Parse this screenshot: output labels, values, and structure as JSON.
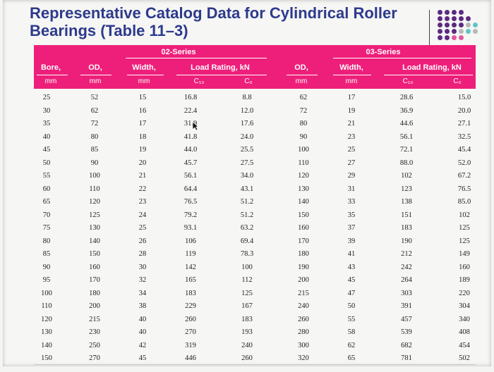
{
  "title_line1": "Representative Catalog Data for Cylindrical Roller",
  "title_line2": "Bearings (Table 11–3)",
  "header": {
    "series_02": "02-Series",
    "series_03": "03-Series",
    "bore": "Bore,",
    "od": "OD,",
    "width": "Width,",
    "load_rating": "Load Rating, kN",
    "od2": "OD,",
    "width2": "Width,",
    "load_rating2": "Load Rating, kN",
    "mm": "mm",
    "c10": "C₁₀",
    "c0": "C₀"
  },
  "columns": [
    "bore",
    "od02",
    "w02",
    "c10_02",
    "c0_02",
    "od03",
    "w03",
    "c10_03",
    "c0_03"
  ],
  "rows": [
    [
      "25",
      "52",
      "15",
      "16.8",
      "8.8",
      "62",
      "17",
      "28.6",
      "15.0"
    ],
    [
      "30",
      "62",
      "16",
      "22.4",
      "12.0",
      "72",
      "19",
      "36.9",
      "20.0"
    ],
    [
      "35",
      "72",
      "17",
      "31.9",
      "17.6",
      "80",
      "21",
      "44.6",
      "27.1"
    ],
    [
      "40",
      "80",
      "18",
      "41.8",
      "24.0",
      "90",
      "23",
      "56.1",
      "32.5"
    ],
    [
      "45",
      "85",
      "19",
      "44.0",
      "25.5",
      "100",
      "25",
      "72.1",
      "45.4"
    ],
    [
      "50",
      "90",
      "20",
      "45.7",
      "27.5",
      "110",
      "27",
      "88.0",
      "52.0"
    ],
    [
      "55",
      "100",
      "21",
      "56.1",
      "34.0",
      "120",
      "29",
      "102",
      "67.2"
    ],
    [
      "60",
      "110",
      "22",
      "64.4",
      "43.1",
      "130",
      "31",
      "123",
      "76.5"
    ],
    [
      "65",
      "120",
      "23",
      "76.5",
      "51.2",
      "140",
      "33",
      "138",
      "85.0"
    ],
    [
      "70",
      "125",
      "24",
      "79.2",
      "51.2",
      "150",
      "35",
      "151",
      "102"
    ],
    [
      "75",
      "130",
      "25",
      "93.1",
      "63.2",
      "160",
      "37",
      "183",
      "125"
    ],
    [
      "80",
      "140",
      "26",
      "106",
      "69.4",
      "170",
      "39",
      "190",
      "125"
    ],
    [
      "85",
      "150",
      "28",
      "119",
      "78.3",
      "180",
      "41",
      "212",
      "149"
    ],
    [
      "90",
      "160",
      "30",
      "142",
      "100",
      "190",
      "43",
      "242",
      "160"
    ],
    [
      "95",
      "170",
      "32",
      "165",
      "112",
      "200",
      "45",
      "264",
      "189"
    ],
    [
      "100",
      "180",
      "34",
      "183",
      "125",
      "215",
      "47",
      "303",
      "220"
    ],
    [
      "110",
      "200",
      "38",
      "229",
      "167",
      "240",
      "50",
      "391",
      "304"
    ],
    [
      "120",
      "215",
      "40",
      "260",
      "183",
      "260",
      "55",
      "457",
      "340"
    ],
    [
      "130",
      "230",
      "40",
      "270",
      "193",
      "280",
      "58",
      "539",
      "408"
    ],
    [
      "140",
      "250",
      "42",
      "319",
      "240",
      "300",
      "62",
      "682",
      "454"
    ],
    [
      "150",
      "270",
      "45",
      "446",
      "260",
      "320",
      "65",
      "781",
      "502"
    ]
  ],
  "colors": {
    "title": "#2d3a8c",
    "header_band": "#ee1f7a",
    "dot_purple": "#5a2a82",
    "dot_gray": "#b8b8b8",
    "dot_teal": "#5fc6c2",
    "dot_pink": "#e05a9c"
  }
}
